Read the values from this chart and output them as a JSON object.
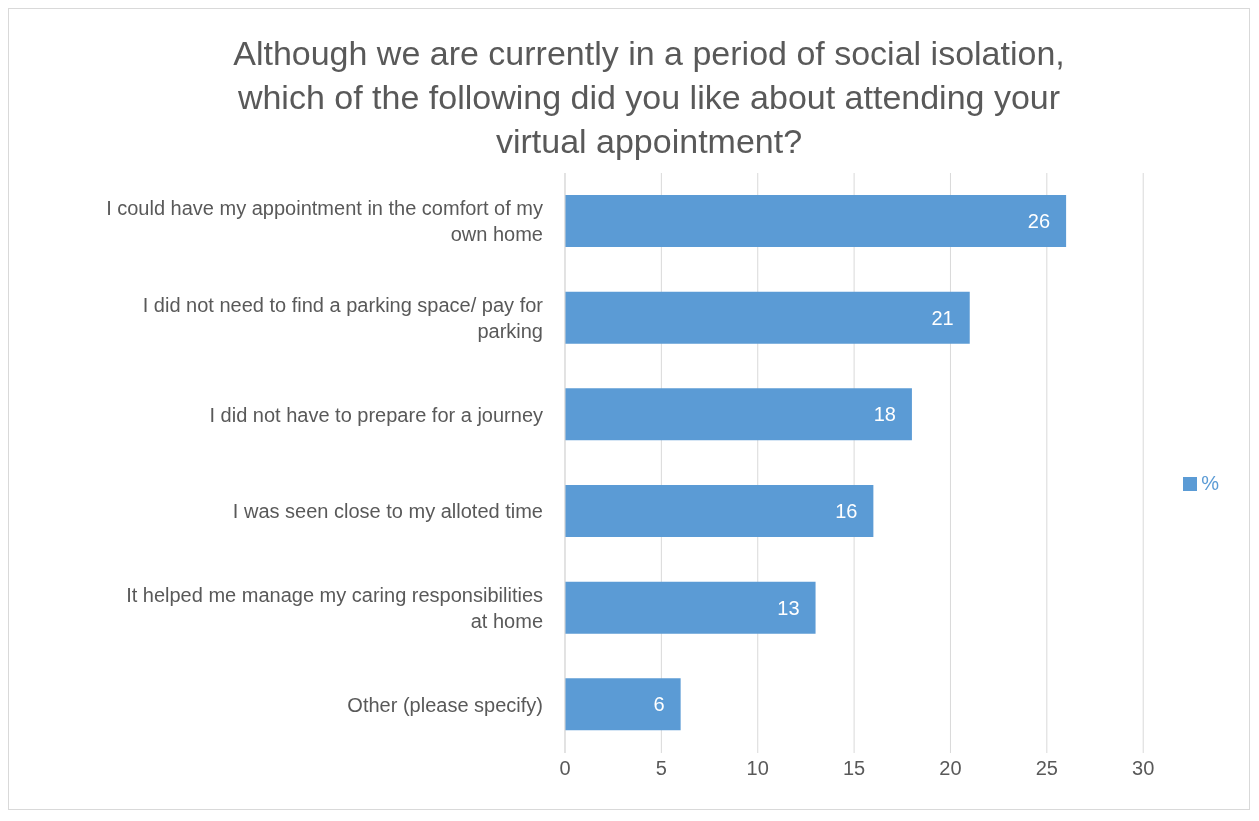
{
  "chart_data": {
    "type": "bar",
    "orientation": "horizontal",
    "title": "Although we are currently in a period of social isolation, which of the following did you like about attending your virtual appointment?",
    "categories": [
      "I could have my appointment in the comfort of my own home",
      "I did not need to find a parking space/ pay for parking",
      "I did not have to prepare for a journey",
      "I was seen close to my alloted time",
      "It helped me manage my caring responsibilities at home",
      "Other (please specify)"
    ],
    "series": [
      {
        "name": "%",
        "color": "#5b9bd5",
        "values": [
          26,
          21,
          18,
          16,
          13,
          6
        ]
      }
    ],
    "xlim": [
      0,
      30
    ],
    "xticks": [
      0,
      5,
      10,
      15,
      20,
      25,
      30
    ],
    "grid": "x",
    "legend": "right",
    "data_labels": true
  }
}
